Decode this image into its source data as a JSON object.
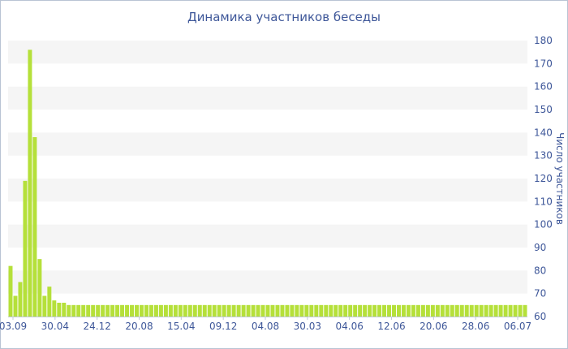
{
  "chart_data": {
    "type": "bar",
    "title": "Динамика участников беседы",
    "xlabel": "",
    "ylabel": "Число участников",
    "ylim": [
      60,
      180
    ],
    "yticks": [
      60,
      70,
      80,
      90,
      100,
      110,
      120,
      130,
      140,
      150,
      160,
      170,
      180
    ],
    "xticks": [
      "03.09",
      "30.04",
      "24.12",
      "20.08",
      "15.04",
      "09.12",
      "04.08",
      "30.03",
      "04.06",
      "12.06",
      "20.06",
      "28.06",
      "06.07"
    ],
    "grid": "alternating horizontal bands",
    "y_axis_position": "right",
    "bar_color": "#b5e03a",
    "values": [
      82,
      69,
      75,
      119,
      176,
      138,
      85,
      69,
      73,
      67,
      66,
      66,
      65,
      65,
      65,
      65,
      65,
      65,
      65,
      65,
      65,
      65,
      65,
      65,
      65,
      65,
      65,
      65,
      65,
      65,
      65,
      65,
      65,
      65,
      65,
      65,
      65,
      65,
      65,
      65,
      65,
      65,
      65,
      65,
      65,
      65,
      65,
      65,
      65,
      65,
      65,
      65,
      65,
      65,
      65,
      65,
      65,
      65,
      65,
      65,
      65,
      65,
      65,
      65,
      65,
      65,
      65,
      65,
      65,
      65,
      65,
      65,
      65,
      65,
      65,
      65,
      65,
      65,
      65,
      65,
      65,
      65,
      65,
      65,
      65,
      65,
      65,
      65,
      65,
      65,
      65,
      65,
      65,
      65,
      65,
      65,
      65,
      65,
      65,
      65,
      65,
      65,
      65,
      65,
      65,
      65,
      65
    ]
  }
}
